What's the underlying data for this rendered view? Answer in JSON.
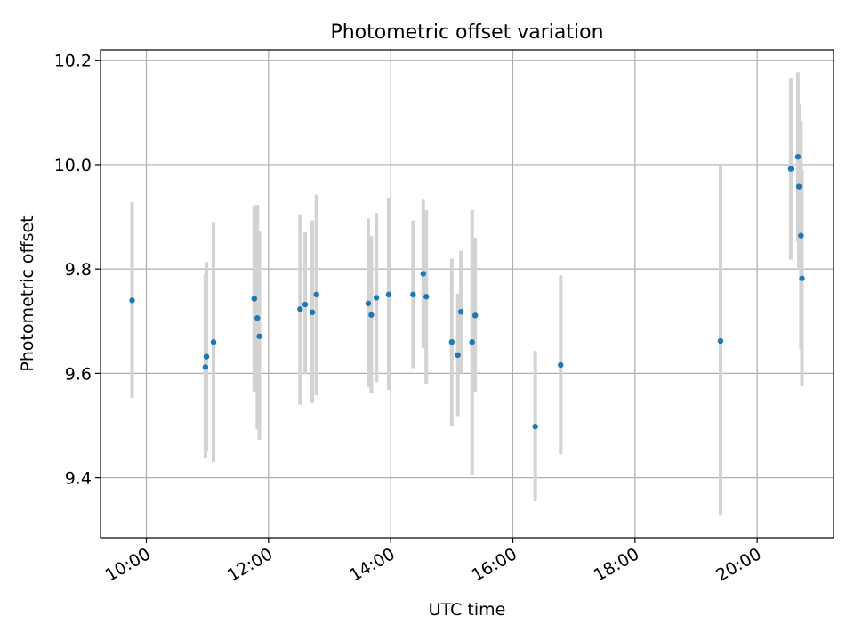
{
  "colors": {
    "point": "#1f77b4",
    "errorbar": "#d3d3d3",
    "grid": "#b0b0b0",
    "axis": "#000000"
  },
  "chart_data": {
    "type": "scatter",
    "title": "Photometric offset variation",
    "xlabel": "UTC time",
    "ylabel": "Photometric offset",
    "x_format": "HH:MM",
    "xlim": [
      "09:15",
      "21:15"
    ],
    "ylim": [
      9.285,
      10.22
    ],
    "grid": true,
    "x_ticks": [
      "10:00",
      "12:00",
      "14:00",
      "16:00",
      "18:00",
      "20:00"
    ],
    "y_ticks": [
      9.4,
      9.6,
      9.8,
      10.0,
      10.2
    ],
    "y_tick_labels": [
      "9.4",
      "9.6",
      "9.8",
      "10.0",
      "10.2"
    ],
    "series": [
      {
        "points": [
          {
            "x": "09:46",
            "y": 9.74,
            "err_low": 9.553,
            "err_high": 9.928
          },
          {
            "x": "10:58",
            "y": 9.612,
            "err_low": 9.438,
            "err_high": 9.79
          },
          {
            "x": "10:59",
            "y": 9.632,
            "err_low": 9.45,
            "err_high": 9.813
          },
          {
            "x": "11:06",
            "y": 9.66,
            "err_low": 9.43,
            "err_high": 9.89
          },
          {
            "x": "11:46",
            "y": 9.743,
            "err_low": 9.565,
            "err_high": 9.922
          },
          {
            "x": "11:49",
            "y": 9.706,
            "err_low": 9.493,
            "err_high": 9.923
          },
          {
            "x": "11:51",
            "y": 9.671,
            "err_low": 9.473,
            "err_high": 9.873
          },
          {
            "x": "12:31",
            "y": 9.723,
            "err_low": 9.54,
            "err_high": 9.905
          },
          {
            "x": "12:36",
            "y": 9.732,
            "err_low": 9.598,
            "err_high": 9.87
          },
          {
            "x": "12:43",
            "y": 9.717,
            "err_low": 9.543,
            "err_high": 9.893
          },
          {
            "x": "12:47",
            "y": 9.751,
            "err_low": 9.558,
            "err_high": 9.943
          },
          {
            "x": "13:38",
            "y": 9.734,
            "err_low": 9.573,
            "err_high": 9.897
          },
          {
            "x": "13:41",
            "y": 9.712,
            "err_low": 9.563,
            "err_high": 9.863
          },
          {
            "x": "13:46",
            "y": 9.745,
            "err_low": 9.583,
            "err_high": 9.908
          },
          {
            "x": "13:58",
            "y": 9.751,
            "err_low": 9.568,
            "err_high": 9.937
          },
          {
            "x": "14:22",
            "y": 9.751,
            "err_low": 9.61,
            "err_high": 9.893
          },
          {
            "x": "14:32",
            "y": 9.791,
            "err_low": 9.648,
            "err_high": 9.933
          },
          {
            "x": "14:35",
            "y": 9.747,
            "err_low": 9.58,
            "err_high": 9.913
          },
          {
            "x": "15:00",
            "y": 9.66,
            "err_low": 9.5,
            "err_high": 9.82
          },
          {
            "x": "15:06",
            "y": 9.635,
            "err_low": 9.518,
            "err_high": 9.753
          },
          {
            "x": "15:09",
            "y": 9.718,
            "err_low": 9.6,
            "err_high": 9.835
          },
          {
            "x": "15:20",
            "y": 9.66,
            "err_low": 9.405,
            "err_high": 9.913
          },
          {
            "x": "15:23",
            "y": 9.711,
            "err_low": 9.565,
            "err_high": 9.86
          },
          {
            "x": "16:22",
            "y": 9.498,
            "err_low": 9.355,
            "err_high": 9.643
          },
          {
            "x": "16:47",
            "y": 9.616,
            "err_low": 9.445,
            "err_high": 9.788
          },
          {
            "x": "19:24",
            "y": 9.662,
            "err_low": 9.327,
            "err_high": 9.998
          },
          {
            "x": "20:33",
            "y": 9.992,
            "err_low": 9.818,
            "err_high": 10.165
          },
          {
            "x": "20:40",
            "y": 10.015,
            "err_low": 9.853,
            "err_high": 10.177
          },
          {
            "x": "20:41",
            "y": 9.958,
            "err_low": 9.8,
            "err_high": 10.117
          },
          {
            "x": "20:43",
            "y": 9.864,
            "err_low": 9.645,
            "err_high": 10.083
          },
          {
            "x": "20:44",
            "y": 9.782,
            "err_low": 9.575,
            "err_high": 9.99
          }
        ]
      }
    ]
  }
}
